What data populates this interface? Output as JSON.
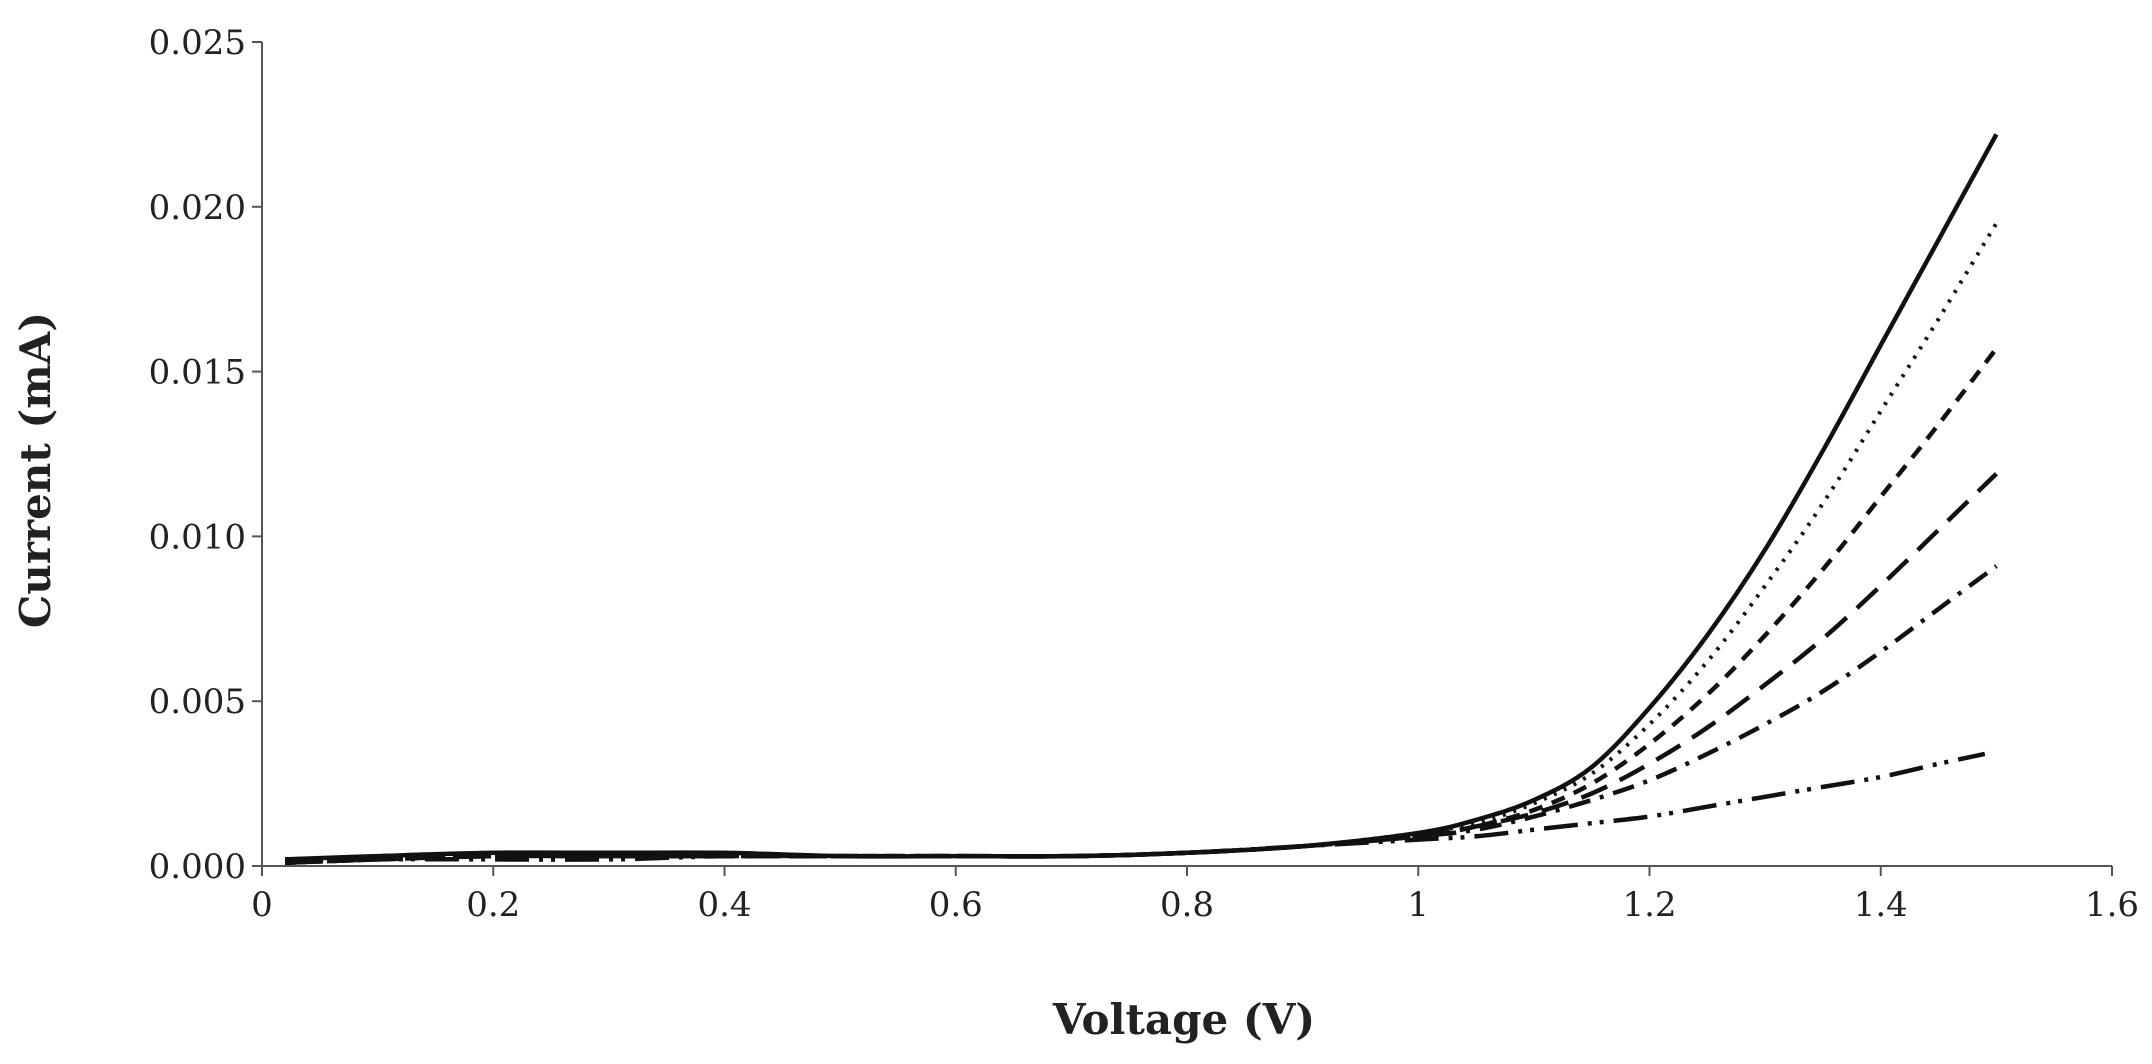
{
  "chart_data": {
    "type": "line",
    "title": "",
    "xlabel": "Voltage (V)",
    "ylabel": "Current (mA)",
    "xlim": [
      0,
      1.6
    ],
    "ylim": [
      0,
      0.025
    ],
    "x_ticks": [
      "0",
      "0.2",
      "0.4",
      "0.6",
      "0.8",
      "1",
      "1.2",
      "1.4",
      "1.6"
    ],
    "y_ticks": [
      "0.000",
      "0.005",
      "0.010",
      "0.015",
      "0.020",
      "0.025"
    ],
    "grid": false,
    "legend": "none",
    "x": [
      0.02,
      0.1,
      0.2,
      0.3,
      0.4,
      0.5,
      0.6,
      0.7,
      0.8,
      0.9,
      1.0,
      1.05,
      1.1,
      1.15,
      1.2,
      1.25,
      1.3,
      1.35,
      1.4,
      1.45,
      1.5
    ],
    "series": [
      {
        "style": "solid",
        "values": [
          0.0002,
          0.0003,
          0.0004,
          0.0004,
          0.0004,
          0.0003,
          0.0003,
          0.0003,
          0.0004,
          0.0006,
          0.001,
          0.0014,
          0.002,
          0.003,
          0.0048,
          0.007,
          0.0096,
          0.0126,
          0.0158,
          0.019,
          0.0222
        ]
      },
      {
        "style": "dotted",
        "values": [
          0.0002,
          0.0003,
          0.0004,
          0.0004,
          0.0004,
          0.0003,
          0.0003,
          0.0003,
          0.0004,
          0.0006,
          0.001,
          0.0013,
          0.0019,
          0.0028,
          0.0043,
          0.0062,
          0.0085,
          0.011,
          0.0138,
          0.0166,
          0.0195
        ]
      },
      {
        "style": "short-dash",
        "values": [
          0.0001,
          0.0002,
          0.0003,
          0.0003,
          0.0003,
          0.0003,
          0.0003,
          0.0003,
          0.0004,
          0.0006,
          0.0009,
          0.0012,
          0.0017,
          0.0025,
          0.0037,
          0.0052,
          0.007,
          0.009,
          0.0112,
          0.0134,
          0.0157
        ]
      },
      {
        "style": "long-dash",
        "values": [
          0.0001,
          0.0002,
          0.0003,
          0.0003,
          0.0003,
          0.0003,
          0.0003,
          0.0003,
          0.0004,
          0.0006,
          0.0009,
          0.0012,
          0.0016,
          0.0022,
          0.0031,
          0.0042,
          0.0055,
          0.0069,
          0.0085,
          0.0102,
          0.0119
        ]
      },
      {
        "style": "dash-dot",
        "values": [
          0.0001,
          0.0002,
          0.0003,
          0.0003,
          0.0003,
          0.0003,
          0.0003,
          0.0003,
          0.0004,
          0.0006,
          0.0009,
          0.0011,
          0.0015,
          0.002,
          0.0026,
          0.0034,
          0.0043,
          0.0053,
          0.0065,
          0.0078,
          0.0091
        ]
      },
      {
        "style": "long-dash-dot-dot",
        "x": [
          0.02,
          0.1,
          0.2,
          0.3,
          0.4,
          0.5,
          0.6,
          0.7,
          0.8,
          0.9,
          1.0,
          1.05,
          1.1,
          1.15,
          1.2,
          1.25,
          1.3,
          1.35,
          1.4,
          1.45,
          1.49
        ],
        "values": [
          0.0001,
          0.0002,
          0.0002,
          0.0002,
          0.0003,
          0.0003,
          0.0003,
          0.0003,
          0.0004,
          0.0006,
          0.0008,
          0.0009,
          0.0011,
          0.0013,
          0.0015,
          0.0018,
          0.0021,
          0.0024,
          0.0027,
          0.0031,
          0.0034
        ]
      }
    ]
  }
}
